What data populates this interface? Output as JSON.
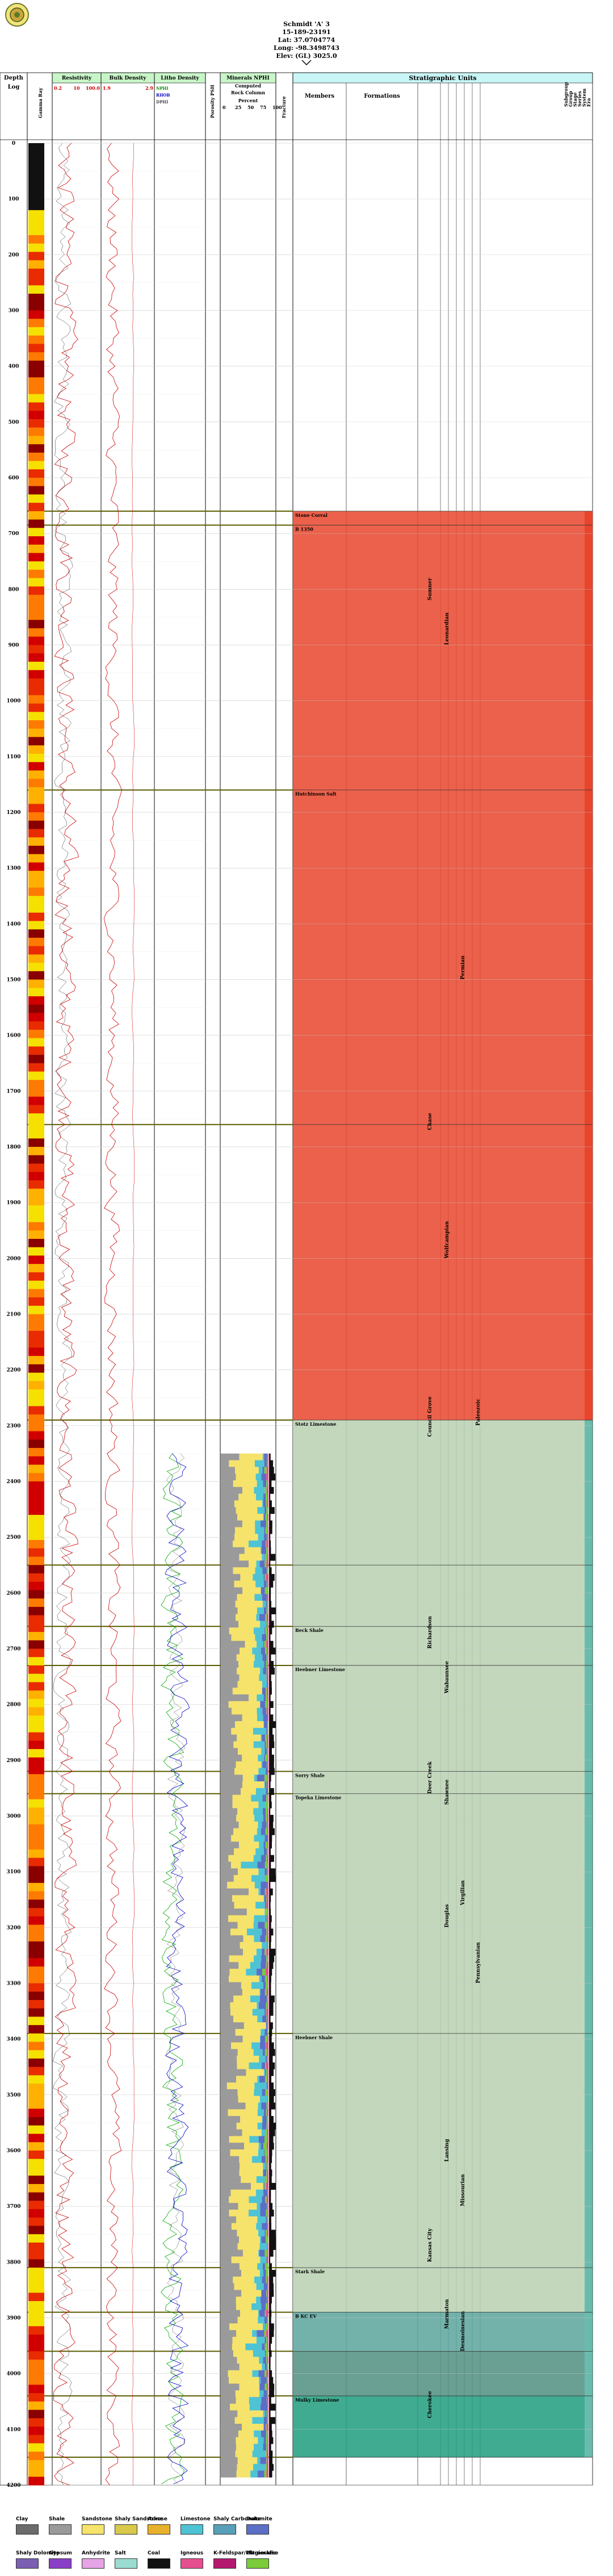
{
  "header": {
    "well_name": "Schmidt 'A' 3",
    "api": "15-189-23191",
    "lat": "Lat: 37.0704774",
    "long": "Long: -98.3498743",
    "elev": "Elev: (GL) 3025.0"
  },
  "columns": {
    "depth": "Depth",
    "log": "Log",
    "gamma": "Gamma Ray",
    "resistivity": "Resistivity",
    "bulk_density": "Bulk Density",
    "lithology_density": "Litho Density",
    "porosity": "Porosity PSH",
    "rock_composition": "Minerals NPHI",
    "rock_sub1": "Computed",
    "rock_sub2": "Rock Column",
    "rock_sub3": "Percent",
    "fracture": "Fracture",
    "stratigraphic": "Stratigraphic Units",
    "members": "Members",
    "formations": "Formations",
    "period_labels": [
      "Era",
      "System",
      "Series",
      "Stage",
      "Group",
      "Subgroup"
    ]
  },
  "track_scales": {
    "resistivity_left": "0.2",
    "resistivity_mid": "10",
    "resistivity_right": "100.0",
    "bulk_left": "1.9",
    "bulk_right": "2.9",
    "litho1_left": "NPHI",
    "litho2_left": "RHOB",
    "litho3_left": "DPHI",
    "rock_ticks": [
      "0",
      "25",
      "50",
      "75",
      "100"
    ]
  },
  "chart_data": {
    "type": "well-log",
    "depth_min": 0,
    "depth_max": 4200,
    "depth_ticks": [
      0,
      100,
      200,
      300,
      400,
      500,
      600,
      700,
      800,
      900,
      1000,
      1100,
      1200,
      1300,
      1400,
      1500,
      1600,
      1700,
      1800,
      1900,
      2000,
      2100,
      2200,
      2300,
      2400,
      2500,
      2600,
      2700,
      2800,
      2900,
      3000,
      3100,
      3200,
      3300,
      3400,
      3500,
      3600,
      3700,
      3800,
      3900,
      4000,
      4100,
      4200
    ],
    "formation_tops": [
      {
        "depth": 660,
        "label": "Stone Corral",
        "color": "#e8452c"
      },
      {
        "depth": 685,
        "label": "B 1350",
        "color": "#e8452c"
      },
      {
        "depth": 1160,
        "label": "Hutchinson Salt",
        "color": "#e8452c"
      },
      {
        "depth": 1760,
        "label": "",
        "color": "#e8452c"
      },
      {
        "depth": 2290,
        "label": "Stotz Limestone",
        "color": "#b9d0b2"
      },
      {
        "depth": 2550,
        "label": "",
        "color": "#b9d0b2"
      },
      {
        "depth": 2660,
        "label": "Beck Shale",
        "color": "#b9d0b2"
      },
      {
        "depth": 2730,
        "label": "Heebner Limestone",
        "color": "#b9d0b2"
      },
      {
        "depth": 2920,
        "label": "Sorry Shale",
        "color": "#b9d0b2"
      },
      {
        "depth": 2960,
        "label": "Topeka Limestone",
        "color": "#b9d0b2"
      },
      {
        "depth": 3390,
        "label": "Heebner Shale",
        "color": "#b9d0b2"
      },
      {
        "depth": 3810,
        "label": "Stark Shale",
        "color": "#b9d0b2"
      },
      {
        "depth": 3890,
        "label": "B KC EV",
        "color": "#5aa59c"
      },
      {
        "depth": 3960,
        "label": "",
        "color": "#4f8f80"
      },
      {
        "depth": 4040,
        "label": "Mulky Limestone",
        "color": "#1f9c7c"
      },
      {
        "depth": 4150,
        "label": "",
        "color": "#1f9c7c"
      }
    ],
    "strat_labels": [
      {
        "depth": 820,
        "col": 0,
        "text": "Sumner"
      },
      {
        "depth": 900,
        "col": 1,
        "text": "Leonardian"
      },
      {
        "depth": 1500,
        "col": 2,
        "text": "Permian"
      },
      {
        "depth": 1770,
        "col": 0,
        "text": "Chase"
      },
      {
        "depth": 2000,
        "col": 1,
        "text": "Wolfcampian"
      },
      {
        "depth": 2320,
        "col": 0,
        "text": "Council Grove"
      },
      {
        "depth": 2300,
        "col": 3,
        "text": "Paleozoic"
      },
      {
        "depth": 2700,
        "col": 0,
        "text": "Richardson"
      },
      {
        "depth": 2780,
        "col": 1,
        "text": "Wabaunsee"
      },
      {
        "depth": 2960,
        "col": 0,
        "text": "Deer Creek"
      },
      {
        "depth": 2980,
        "col": 1,
        "text": "Shawnee"
      },
      {
        "depth": 3200,
        "col": 1,
        "text": "Douglas"
      },
      {
        "depth": 3160,
        "col": 2,
        "text": "Virgilian"
      },
      {
        "depth": 3620,
        "col": 1,
        "text": "Lansing"
      },
      {
        "depth": 3700,
        "col": 2,
        "text": "Missourian"
      },
      {
        "depth": 3800,
        "col": 0,
        "text": "Kansas City"
      },
      {
        "depth": 3920,
        "col": 1,
        "text": "Marmaton"
      },
      {
        "depth": 4080,
        "col": 0,
        "text": "Cherokee"
      },
      {
        "depth": 3960,
        "col": 2,
        "text": "Desmoinesian"
      },
      {
        "depth": 3300,
        "col": 3,
        "text": "Pennsylvanian"
      }
    ]
  },
  "legend": {
    "row1": [
      {
        "label": "Clay",
        "color": "#6b6b6b"
      },
      {
        "label": "Shale",
        "color": "#9a9a9a"
      },
      {
        "label": "Sandstone",
        "color": "#f6e36b"
      },
      {
        "label": "Shaly Sandstone",
        "color": "#d8c94a"
      },
      {
        "label": "Arkose",
        "color": "#e8b12c"
      },
      {
        "label": "Limestone",
        "color": "#4ec3d4"
      },
      {
        "label": "Shaly Carbonate",
        "color": "#58a0b8"
      },
      {
        "label": "Dolomite",
        "color": "#5b6fc7"
      }
    ],
    "row2": [
      {
        "label": "Shaly Dolomite",
        "color": "#7a5fb3"
      },
      {
        "label": "Gypsum",
        "color": "#8a3fc7"
      },
      {
        "label": "Anhydrite",
        "color": "#e6a3e6"
      },
      {
        "label": "Salt",
        "color": "#9bdcd0"
      },
      {
        "label": "Coal",
        "color": "#111111"
      },
      {
        "label": "Igneous",
        "color": "#e64f8f"
      },
      {
        "label": "K-Feldspar/Plagioclase",
        "color": "#b4186e"
      },
      {
        "label": "Ultramafic",
        "color": "#7acc3a"
      }
    ]
  }
}
